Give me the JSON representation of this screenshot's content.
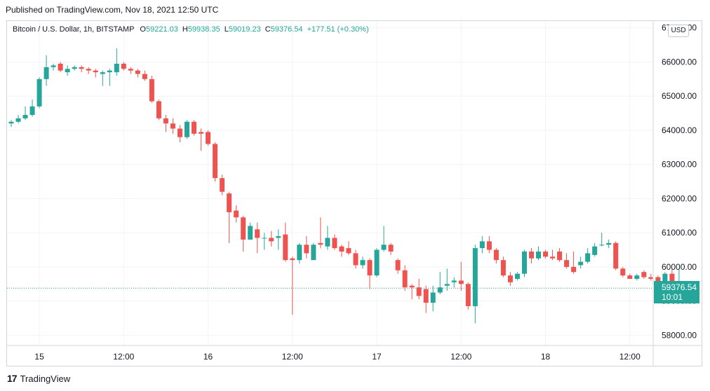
{
  "header": {
    "published": "Published on TradingView.com, Nov 18, 2021 12:50 UTC"
  },
  "legend": {
    "symbol": "Bitcoin / U.S. Dollar, 1h, BITSTAMP",
    "o_label": "O",
    "o_value": "59221.03",
    "h_label": "H",
    "h_value": "59938.35",
    "l_label": "L",
    "l_value": "59019.23",
    "c_label": "C",
    "c_value": "59376.54",
    "change": "+177.51 (+0.30%)"
  },
  "currency_button": "USD",
  "price_tag": {
    "price": "59376.54",
    "countdown": "10:01"
  },
  "footer": {
    "brand": "TradingView",
    "logo_glyph": "17"
  },
  "colors": {
    "up": "#26a69a",
    "down": "#ef5350",
    "grid": "#f0f3fa",
    "axis_text": "#131722",
    "bg": "#ffffff"
  },
  "chart_data": {
    "type": "candlestick",
    "ylim": [
      57700,
      67200
    ],
    "y_ticks": [
      "58000.00",
      "59000.00",
      "60000.00",
      "61000.00",
      "62000.00",
      "63000.00",
      "64000.00",
      "65000.00",
      "66000.00",
      "67000.00"
    ],
    "x_ticks": [
      {
        "label": "15",
        "index": 4
      },
      {
        "label": "12:00",
        "index": 16
      },
      {
        "label": "16",
        "index": 28
      },
      {
        "label": "12:00",
        "index": 40
      },
      {
        "label": "17",
        "index": 52
      },
      {
        "label": "12:00",
        "index": 64
      },
      {
        "label": "18",
        "index": 76
      },
      {
        "label": "12:00",
        "index": 88
      }
    ],
    "last_price": 59376.54,
    "candles": [
      [
        64200,
        64250,
        64100,
        64300
      ],
      [
        64250,
        64350,
        64200,
        64450
      ],
      [
        64350,
        64450,
        64300,
        64700
      ],
      [
        64450,
        64700,
        64400,
        64900
      ],
      [
        64700,
        65500,
        64650,
        65550
      ],
      [
        65500,
        65850,
        65300,
        66200
      ],
      [
        65850,
        65900,
        65750,
        65950
      ],
      [
        65950,
        65750,
        65700,
        66000
      ],
      [
        65700,
        65800,
        65600,
        65900
      ],
      [
        65800,
        65850,
        65750,
        65900
      ],
      [
        65850,
        65800,
        65700,
        65900
      ],
      [
        65800,
        65750,
        65650,
        65850
      ],
      [
        65750,
        65700,
        65550,
        65800
      ],
      [
        65650,
        65700,
        65300,
        65750
      ],
      [
        65700,
        65750,
        65300,
        65800
      ],
      [
        65700,
        65950,
        65600,
        66400
      ],
      [
        65950,
        65800,
        65750,
        66000
      ],
      [
        65800,
        65750,
        65650,
        65850
      ],
      [
        65750,
        65650,
        65550,
        65800
      ],
      [
        65650,
        65500,
        65450,
        65750
      ],
      [
        65500,
        64850,
        64800,
        65600
      ],
      [
        64850,
        64350,
        64300,
        64900
      ],
      [
        64350,
        64200,
        63950,
        64450
      ],
      [
        64200,
        64050,
        63900,
        64350
      ],
      [
        64050,
        63800,
        63650,
        64150
      ],
      [
        63800,
        64250,
        63750,
        64300
      ],
      [
        64250,
        63900,
        63850,
        64300
      ],
      [
        63950,
        63900,
        63400,
        64050
      ],
      [
        63950,
        63600,
        63550,
        64000
      ],
      [
        63600,
        62600,
        62500,
        63650
      ],
      [
        62600,
        62200,
        62100,
        62700
      ],
      [
        62150,
        61600,
        60700,
        62200
      ],
      [
        61650,
        61450,
        61300,
        61800
      ],
      [
        61450,
        60800,
        60450,
        61500
      ],
      [
        60800,
        61200,
        60850,
        61300
      ],
      [
        61100,
        60850,
        60400,
        61300
      ],
      [
        60850,
        60850,
        60500,
        61000
      ],
      [
        60850,
        60750,
        60600,
        61050
      ],
      [
        60850,
        60900,
        60500,
        61100
      ],
      [
        60950,
        60200,
        60150,
        61300
      ],
      [
        60250,
        60200,
        58600,
        60300
      ],
      [
        60200,
        60650,
        60100,
        60700
      ],
      [
        60650,
        60400,
        60250,
        60900
      ],
      [
        60200,
        60650,
        60200,
        60700
      ],
      [
        60700,
        60650,
        60550,
        61450
      ],
      [
        60600,
        60850,
        60500,
        61200
      ],
      [
        60850,
        60550,
        60500,
        60950
      ],
      [
        60600,
        60450,
        60300,
        60650
      ],
      [
        60550,
        60400,
        60350,
        60750
      ],
      [
        60400,
        60050,
        59950,
        60500
      ],
      [
        60050,
        60200,
        59950,
        60300
      ],
      [
        60200,
        59750,
        59350,
        60250
      ],
      [
        59750,
        60500,
        59700,
        60550
      ],
      [
        60500,
        60650,
        60450,
        61200
      ],
      [
        60650,
        60450,
        60350,
        60700
      ],
      [
        60200,
        59900,
        59800,
        60250
      ],
      [
        59900,
        59400,
        59300,
        60050
      ],
      [
        59450,
        59400,
        59050,
        59500
      ],
      [
        59400,
        59150,
        59050,
        59650
      ],
      [
        59350,
        58950,
        58650,
        59450
      ],
      [
        58950,
        59250,
        58700,
        59450
      ],
      [
        59250,
        59400,
        59200,
        59850
      ],
      [
        59450,
        59500,
        59300,
        59950
      ],
      [
        59550,
        59600,
        59400,
        59700
      ],
      [
        59600,
        59500,
        59300,
        60150
      ],
      [
        59500,
        58850,
        58750,
        59550
      ],
      [
        58850,
        60550,
        58350,
        60650
      ],
      [
        60550,
        60750,
        60400,
        60900
      ],
      [
        60750,
        60500,
        60400,
        60900
      ],
      [
        60500,
        60200,
        60100,
        60550
      ],
      [
        60200,
        59750,
        59700,
        60300
      ],
      [
        59750,
        59550,
        59450,
        59850
      ],
      [
        59650,
        59800,
        59600,
        59850
      ],
      [
        59800,
        60450,
        59700,
        60500
      ],
      [
        60450,
        60250,
        60100,
        60550
      ],
      [
        60250,
        60450,
        60200,
        60600
      ],
      [
        60450,
        60300,
        60250,
        60500
      ],
      [
        60300,
        60250,
        60200,
        60500
      ],
      [
        60450,
        60200,
        60150,
        60550
      ],
      [
        60200,
        60000,
        59950,
        60400
      ],
      [
        60000,
        59850,
        59800,
        60450
      ],
      [
        60050,
        60150,
        59950,
        60300
      ],
      [
        60150,
        60400,
        60100,
        60550
      ],
      [
        60350,
        60600,
        60300,
        60700
      ],
      [
        60650,
        60650,
        60600,
        61000
      ],
      [
        60650,
        60700,
        60550,
        60800
      ],
      [
        60700,
        59950,
        59900,
        60750
      ],
      [
        59950,
        59750,
        59700,
        60000
      ],
      [
        59750,
        59650,
        59650,
        59800
      ],
      [
        59650,
        59750,
        59600,
        59800
      ],
      [
        59850,
        59700,
        59650,
        59900
      ],
      [
        59700,
        59650,
        59600,
        59800
      ],
      [
        59700,
        59300,
        59050,
        59750
      ],
      [
        59300,
        59800,
        59050,
        59850
      ],
      [
        59800,
        59250,
        59200,
        59950
      ],
      [
        59221.03,
        59376.54,
        59019.23,
        59938.35
      ]
    ]
  }
}
